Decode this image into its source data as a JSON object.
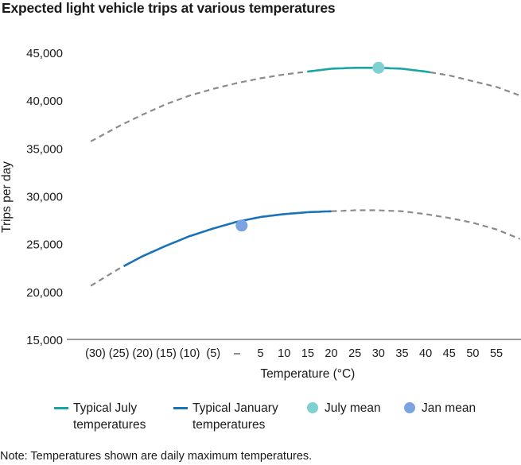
{
  "chart_data": {
    "type": "line",
    "title": "Expected light vehicle trips at various temperatures",
    "xlabel": "Temperature (°C)",
    "ylabel": "Trips per day",
    "x_tick_values": [
      -30,
      -25,
      -20,
      -15,
      -10,
      -5,
      0,
      5,
      10,
      15,
      20,
      25,
      30,
      35,
      40,
      45,
      50,
      55
    ],
    "x_tick_labels": [
      "(30)",
      "(25)",
      "(20)",
      "(15)",
      "(10)",
      "(5)",
      "–",
      "5",
      "10",
      "15",
      "20",
      "25",
      "30",
      "35",
      "40",
      "45",
      "50",
      "55"
    ],
    "y_tick_values": [
      15000,
      20000,
      25000,
      30000,
      35000,
      40000,
      45000
    ],
    "y_tick_labels": [
      "15,000",
      "20,000",
      "25,000",
      "30,000",
      "35,000",
      "40,000",
      "45,000"
    ],
    "xlim": [
      -35,
      60
    ],
    "ylim": [
      15000,
      45000
    ],
    "series": [
      {
        "name": "Typical July temperatures",
        "color": "#1aa5a5",
        "dashed_color": "#8a8a8a",
        "x": [
          -31,
          -25,
          -20,
          -15,
          -10,
          -5,
          0,
          5,
          10,
          15,
          20,
          25,
          30,
          35,
          40,
          45,
          50,
          55,
          60
        ],
        "y": [
          35700,
          37300,
          38500,
          39600,
          40500,
          41200,
          41800,
          42300,
          42700,
          43000,
          43300,
          43400,
          43400,
          43300,
          43000,
          42600,
          42000,
          41400,
          40500
        ],
        "solid_range": [
          15,
          41
        ]
      },
      {
        "name": "Typical January temperatures",
        "color": "#1a73b8",
        "dashed_color": "#8a8a8a",
        "x": [
          -31,
          -25,
          -20,
          -15,
          -10,
          -5,
          0,
          5,
          10,
          15,
          20,
          25,
          30,
          35,
          40,
          45,
          50,
          55,
          60
        ],
        "y": [
          20600,
          22400,
          23700,
          24800,
          25800,
          26600,
          27300,
          27800,
          28100,
          28300,
          28400,
          28500,
          28500,
          28400,
          28100,
          27700,
          27200,
          26500,
          25500
        ],
        "solid_range": [
          -24,
          20
        ]
      }
    ],
    "markers": [
      {
        "name": "July mean",
        "x": 30,
        "y": 43400,
        "color": "#7fd1d1"
      },
      {
        "name": "Jan mean",
        "x": 1,
        "y": 26900,
        "color": "#7aa3e0"
      }
    ]
  },
  "legend": {
    "items": [
      {
        "label_line1": "Typical July",
        "label_line2": "temperatures",
        "kind": "line",
        "color": "#1aa5a5"
      },
      {
        "label_line1": "Typical January",
        "label_line2": "temperatures",
        "kind": "line",
        "color": "#1a73b8"
      },
      {
        "label_line1": "July mean",
        "label_line2": "",
        "kind": "dot",
        "color": "#7fd1d1"
      },
      {
        "label_line1": "Jan mean",
        "label_line2": "",
        "kind": "dot",
        "color": "#7aa3e0"
      }
    ]
  },
  "note": "Note: Temperatures shown are daily maximum temperatures."
}
